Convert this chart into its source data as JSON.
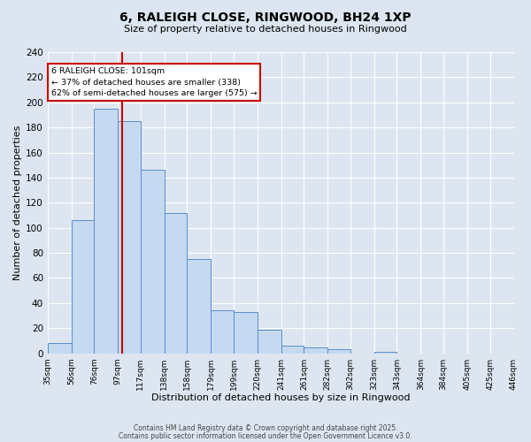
{
  "title": "6, RALEIGH CLOSE, RINGWOOD, BH24 1XP",
  "subtitle": "Size of property relative to detached houses in Ringwood",
  "xlabel": "Distribution of detached houses by size in Ringwood",
  "ylabel": "Number of detached properties",
  "bar_values": [
    8,
    106,
    195,
    185,
    146,
    112,
    75,
    34,
    33,
    19,
    6,
    5,
    3,
    0,
    1,
    0,
    0,
    0,
    0,
    0
  ],
  "bin_labels": [
    "35sqm",
    "56sqm",
    "76sqm",
    "97sqm",
    "117sqm",
    "138sqm",
    "158sqm",
    "179sqm",
    "199sqm",
    "220sqm",
    "241sqm",
    "261sqm",
    "282sqm",
    "302sqm",
    "323sqm",
    "343sqm",
    "364sqm",
    "384sqm",
    "405sqm",
    "425sqm",
    "446sqm"
  ],
  "bar_edges": [
    35,
    56,
    76,
    97,
    117,
    138,
    158,
    179,
    199,
    220,
    241,
    261,
    282,
    302,
    323,
    343,
    364,
    384,
    405,
    425,
    446
  ],
  "bar_color": "#c5d9f1",
  "bar_edge_color": "#5b8dc8",
  "vline_x": 101,
  "vline_color": "#cc0000",
  "annotation_title": "6 RALEIGH CLOSE: 101sqm",
  "annotation_line1": "← 37% of detached houses are smaller (338)",
  "annotation_line2": "62% of semi-detached houses are larger (575) →",
  "annotation_box_color": "#ffffff",
  "annotation_box_edge": "#cc0000",
  "ylim": [
    0,
    240
  ],
  "yticks": [
    0,
    20,
    40,
    60,
    80,
    100,
    120,
    140,
    160,
    180,
    200,
    220,
    240
  ],
  "background_color": "#dde6f0",
  "grid_color": "#ffffff",
  "footer1": "Contains HM Land Registry data © Crown copyright and database right 2025.",
  "footer2": "Contains public sector information licensed under the Open Government Licence v3.0."
}
